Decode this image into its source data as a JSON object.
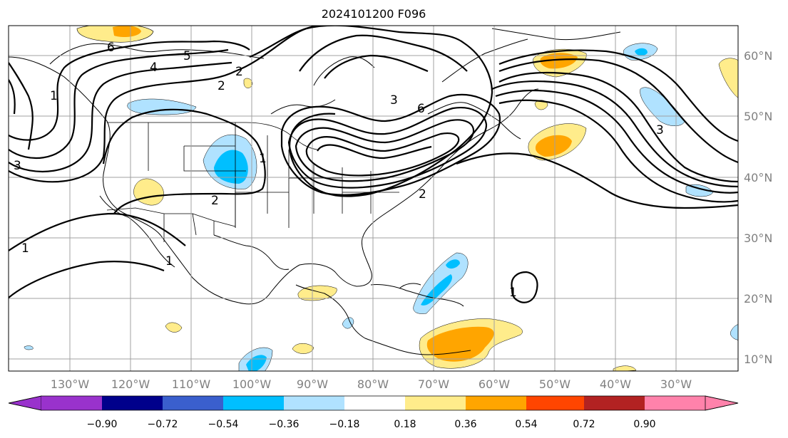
{
  "title": "2024101200 F096",
  "lon_labels": [
    "130°W",
    "120°W",
    "110°W",
    "100°W",
    "90°W",
    "80°W",
    "70°W",
    "60°W",
    "50°W",
    "40°W",
    "30°W"
  ],
  "lat_labels": [
    "60°N",
    "50°N",
    "40°N",
    "30°N",
    "20°N",
    "10°N"
  ],
  "colorbar": {
    "ticks": [
      "−0.90",
      "−0.72",
      "−0.54",
      "−0.36",
      "−0.18",
      "0.18",
      "0.36",
      "0.54",
      "0.72",
      "0.90"
    ],
    "colors": [
      "#9932cc",
      "#00008b",
      "#3a5fcd",
      "#00bfff",
      "#b0e2ff",
      "#ffffff",
      "#ffec8b",
      "#ffa500",
      "#ff4500",
      "#b22222",
      "#ff82ab"
    ]
  },
  "contour_labels": [
    "6",
    "5",
    "4",
    "2",
    "3",
    "6",
    "3",
    "2",
    "2",
    "1",
    "1",
    "2",
    "1",
    "1",
    "3",
    "1"
  ],
  "fill_colors": {
    "light_blue": "#b0e2ff",
    "blue": "#00bfff",
    "yellow": "#ffec8b",
    "orange": "#ffa500"
  }
}
